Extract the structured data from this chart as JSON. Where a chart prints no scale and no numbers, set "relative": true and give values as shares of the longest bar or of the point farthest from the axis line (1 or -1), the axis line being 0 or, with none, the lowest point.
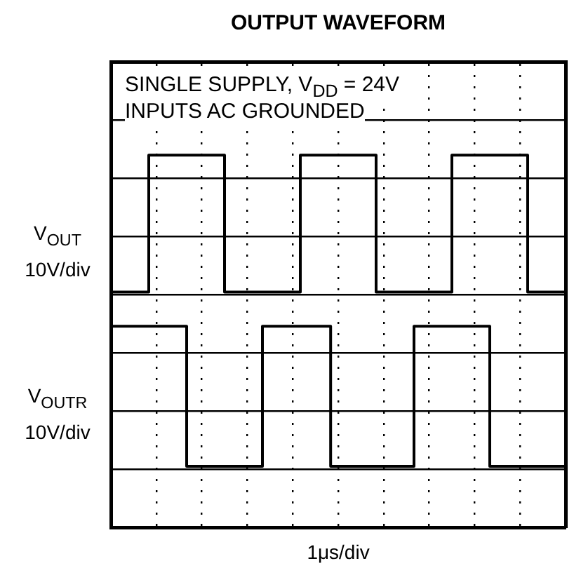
{
  "chart_data": {
    "type": "step",
    "title": "OUTPUT WAVEFORM",
    "xlabel": "1μs/div",
    "relative": true,
    "grid": true,
    "legend": "left",
    "marker": "none",
    "line_style": "solid",
    "annotations": [
      "SINGLE SUPPLY, V$_{DD}$ = 24V",
      "INPUTS AC GROUNDED",
      "10V/div",
      "10V/div"
    ],
    "categories": [
      null,
      null,
      null,
      null,
      null,
      null,
      null,
      null,
      null,
      null,
      null,
      null,
      null,
      null,
      null,
      null,
      null,
      null,
      null,
      null,
      null,
      null,
      null,
      null,
      null,
      null,
      null,
      null,
      null,
      null,
      null,
      null,
      null,
      null,
      null,
      null,
      null,
      null,
      null,
      null,
      null,
      null,
      null,
      null,
      null,
      null,
      null,
      null,
      null,
      null,
      null,
      null,
      null,
      null,
      null,
      null,
      null,
      null,
      null,
      null,
      null
    ],
    "series": [
      {
        "name": "V$_{OUT}$",
        "color": "#000000",
        "values": [
          0.56,
          0.56,
          0.56,
          0.56,
          0.56,
          0.56,
          1,
          1,
          1,
          1,
          1,
          1,
          1,
          1,
          1,
          1,
          0.56,
          0.56,
          0.56,
          0.56,
          0.56,
          0.56,
          0.56,
          0.56,
          0.56,
          0.56,
          1,
          1,
          1,
          1,
          1,
          1,
          1,
          1,
          1,
          1,
          0.56,
          0.56,
          0.56,
          0.56,
          0.56,
          0.56,
          0.56,
          0.56,
          0.56,
          0.56,
          1,
          1,
          1,
          1,
          1,
          1,
          1,
          1,
          1,
          1,
          0.56,
          0.56,
          0.56,
          0.56,
          0.56
        ]
      },
      {
        "name": "V$_{OUTR}$",
        "color": "#000000",
        "values": [
          0,
          0.45,
          0.45,
          0.45,
          0.45,
          0.45,
          0.45,
          0.45,
          0.45,
          0.45,
          0.45,
          0,
          0,
          0,
          0,
          0,
          0,
          0,
          0,
          0,
          0,
          0.45,
          0.45,
          0.45,
          0.45,
          0.45,
          0.45,
          0.45,
          0.45,
          0.45,
          0,
          0,
          0,
          0,
          0,
          0,
          0,
          0,
          0,
          0,
          0,
          0.45,
          0.45,
          0.45,
          0.45,
          0.45,
          0.45,
          0.45,
          0.45,
          0.45,
          0.45,
          0,
          0,
          0,
          0,
          0,
          0,
          0,
          0,
          0,
          0
        ]
      }
    ]
  }
}
